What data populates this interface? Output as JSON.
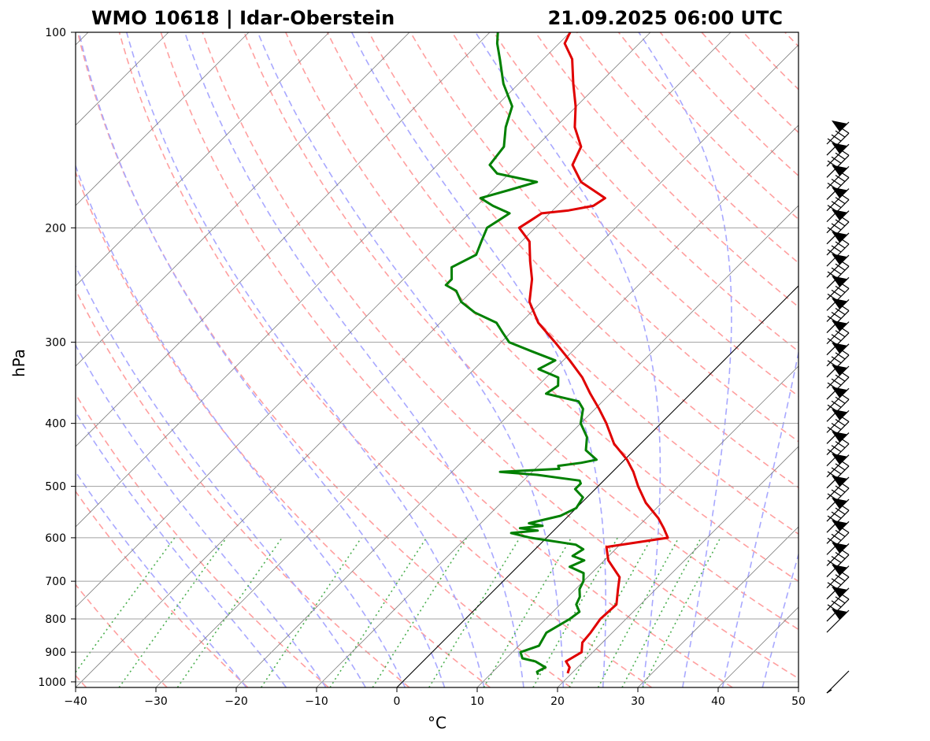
{
  "header": {
    "title_left": "WMO 10618 | Idar-Oberstein",
    "title_right": "21.09.2025 06:00 UTC"
  },
  "colors": {
    "temperature": "#e00000",
    "dewpoint": "#008000",
    "dry_adiabat": "#ff9f9f",
    "moist_adiabat": "#a8a8ff",
    "mixing_ratio": "#4caf50",
    "isotherm": "#808080",
    "isobar": "#a0a0a0"
  },
  "chart_data": {
    "type": "skew-t log-p sounding",
    "xlabel": "°C",
    "ylabel": "hPa",
    "xlim": [
      -40,
      50
    ],
    "ylim": [
      1020,
      100
    ],
    "x_ticks": [
      -40,
      -30,
      -20,
      -10,
      0,
      10,
      20,
      30,
      40,
      50
    ],
    "x_tick_labels": [
      "−40",
      "−30",
      "−20",
      "−10",
      "0",
      "10",
      "20",
      "30",
      "40",
      "50"
    ],
    "y_ticks": [
      100,
      200,
      300,
      400,
      500,
      600,
      700,
      800,
      900,
      1000
    ],
    "y_tick_labels": [
      "100",
      "200",
      "300",
      "400",
      "500",
      "600",
      "700",
      "800",
      "900",
      "1000"
    ],
    "series": [
      {
        "name": "temperature",
        "points": [
          [
            970,
            19.5
          ],
          [
            950,
            19
          ],
          [
            930,
            17.8
          ],
          [
            900,
            18.6
          ],
          [
            870,
            17.5
          ],
          [
            840,
            17.3
          ],
          [
            800,
            16.8
          ],
          [
            760,
            17.0
          ],
          [
            720,
            15.3
          ],
          [
            690,
            14.0
          ],
          [
            650,
            10.5
          ],
          [
            620,
            8.6
          ],
          [
            600,
            15.1
          ],
          [
            580,
            13.4
          ],
          [
            560,
            11.5
          ],
          [
            530,
            8.0
          ],
          [
            500,
            5.0
          ],
          [
            475,
            2.6
          ],
          [
            455,
            0.3
          ],
          [
            430,
            -3.3
          ],
          [
            400,
            -6.8
          ],
          [
            380,
            -9.5
          ],
          [
            360,
            -12.5
          ],
          [
            340,
            -15.5
          ],
          [
            320,
            -19.2
          ],
          [
            300,
            -23.3
          ],
          [
            280,
            -27.8
          ],
          [
            260,
            -31.5
          ],
          [
            240,
            -34.0
          ],
          [
            225,
            -36.5
          ],
          [
            210,
            -39.0
          ],
          [
            200,
            -42.0
          ],
          [
            195,
            -41.5
          ],
          [
            190,
            -41.0
          ],
          [
            188,
            -38.0
          ],
          [
            185,
            -35.5
          ],
          [
            180,
            -35.0
          ],
          [
            170,
            -40.0
          ],
          [
            160,
            -43.2
          ],
          [
            150,
            -44.4
          ],
          [
            140,
            -47.6
          ],
          [
            130,
            -50.1
          ],
          [
            120,
            -53.2
          ],
          [
            110,
            -56.4
          ],
          [
            104,
            -59.3
          ],
          [
            100,
            -60.0
          ]
        ]
      },
      {
        "name": "dewpoint",
        "points": [
          [
            975,
            16.0
          ],
          [
            965,
            15.5
          ],
          [
            950,
            16.0
          ],
          [
            940,
            15.0
          ],
          [
            930,
            14.0
          ],
          [
            920,
            12.0
          ],
          [
            900,
            11.0
          ],
          [
            880,
            12.5
          ],
          [
            840,
            11.8
          ],
          [
            800,
            13.0
          ],
          [
            780,
            13.3
          ],
          [
            760,
            12.0
          ],
          [
            740,
            11.5
          ],
          [
            720,
            10.5
          ],
          [
            700,
            10.0
          ],
          [
            680,
            9.0
          ],
          [
            665,
            6.5
          ],
          [
            650,
            7.5
          ],
          [
            640,
            5.5
          ],
          [
            625,
            6.0
          ],
          [
            615,
            4.5
          ],
          [
            600,
            -2.0
          ],
          [
            590,
            -5.0
          ],
          [
            585,
            -2.0
          ],
          [
            580,
            -4.5
          ],
          [
            575,
            -2.0
          ],
          [
            570,
            -4.0
          ],
          [
            555,
            -1.0
          ],
          [
            540,
            0.0
          ],
          [
            520,
            -0.5
          ],
          [
            505,
            -2.5
          ],
          [
            495,
            -2.5
          ],
          [
            490,
            -3.0
          ],
          [
            485,
            -6.0
          ],
          [
            480,
            -9.0
          ],
          [
            475,
            -14.0
          ],
          [
            470,
            -7.0
          ],
          [
            465,
            -7.5
          ],
          [
            460,
            -5.0
          ],
          [
            455,
            -3.5
          ],
          [
            440,
            -6.0
          ],
          [
            420,
            -7.5
          ],
          [
            400,
            -10.0
          ],
          [
            380,
            -11.5
          ],
          [
            370,
            -13.0
          ],
          [
            360,
            -18.0
          ],
          [
            350,
            -17.5
          ],
          [
            340,
            -18.5
          ],
          [
            330,
            -22.0
          ],
          [
            320,
            -21.0
          ],
          [
            310,
            -25.0
          ],
          [
            300,
            -29.0
          ],
          [
            290,
            -31.0
          ],
          [
            280,
            -33.0
          ],
          [
            270,
            -37.0
          ],
          [
            260,
            -40.0
          ],
          [
            250,
            -42.0
          ],
          [
            245,
            -44.0
          ],
          [
            240,
            -44.0
          ],
          [
            230,
            -45.5
          ],
          [
            220,
            -44.0
          ],
          [
            210,
            -45.0
          ],
          [
            200,
            -46.0
          ],
          [
            190,
            -45.0
          ],
          [
            185,
            -48.0
          ],
          [
            180,
            -50.5
          ],
          [
            175,
            -48.0
          ],
          [
            170,
            -45.5
          ],
          [
            165,
            -51.5
          ],
          [
            160,
            -53.5
          ],
          [
            150,
            -54.0
          ],
          [
            140,
            -56.2
          ],
          [
            130,
            -58.0
          ],
          [
            120,
            -61.9
          ],
          [
            110,
            -65.4
          ],
          [
            104,
            -67.7
          ],
          [
            100,
            -69.0
          ]
        ]
      }
    ],
    "wind_barbs_count": 45,
    "parcel_line": true
  }
}
